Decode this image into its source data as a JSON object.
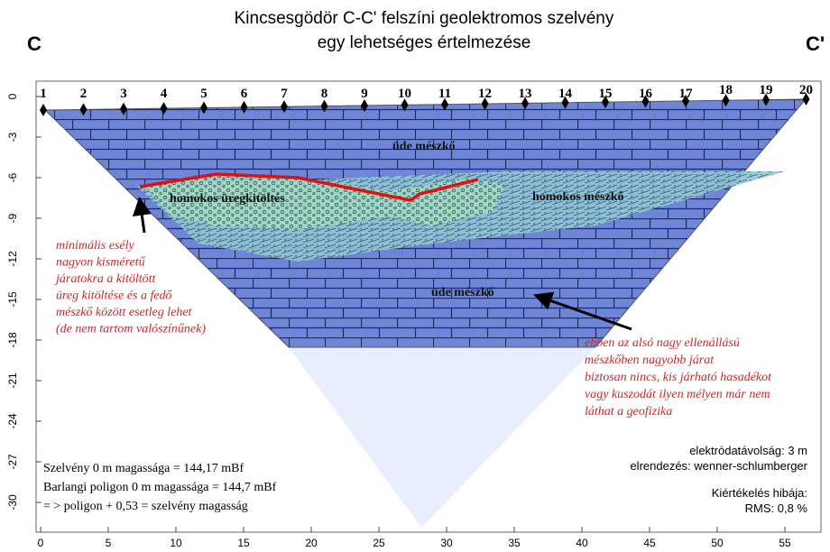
{
  "header": {
    "title_lines": [
      "Kincsesgödör C-C' felszíni geolektromos szelvény",
      "egy lehetséges értelmezése"
    ],
    "left_end": "C",
    "right_end": "C'"
  },
  "electrodes": [
    "1",
    "2",
    "3",
    "4",
    "5",
    "6",
    "7",
    "8",
    "9",
    "10",
    "11",
    "12",
    "13",
    "14",
    "15",
    "16",
    "17",
    "18",
    "19",
    "20"
  ],
  "y_axis_ticks": [
    "0",
    "-3",
    "-6",
    "-9",
    "-12",
    "-15",
    "-18",
    "-21",
    "-24",
    "-27",
    "-30"
  ],
  "x_axis_ticks": [
    "0",
    "5",
    "10",
    "15",
    "20",
    "25",
    "30",
    "35",
    "40",
    "45",
    "50",
    "55"
  ],
  "layers": {
    "upper": "üde mészkő",
    "cavity_fill": "homokos üregkitöltés",
    "sandy": "homokos mészkő",
    "lower": "üde mészkő"
  },
  "notes": {
    "left": [
      "minimális esély",
      "nagyon kisméretű",
      "járatokra a kitöltött",
      "üreg kitöltése és a fedő",
      "mészkő között esetleg lehet",
      "(de nem tartom valószínűnek)"
    ],
    "right": [
      "ebben az alsó nagy ellenállású",
      "mészkőben nagyobb járat",
      "biztosan nincs, kis járható hasadékot",
      "vagy kuszodát ilyen mélyen már nem",
      "láthat a geofizika"
    ]
  },
  "info": {
    "heights": [
      "Szelvény 0 m magassága = 144,17 mBf",
      "Barlangi poligon 0 m magassága = 144,7 mBf",
      "= > poligon + 0,53 = szelvény magasság"
    ],
    "settings": [
      "elektródatávolság: 3 m",
      "elrendezés: wenner-schlumberger"
    ],
    "error": [
      "Kiértékelés hibája:",
      "RMS: 0,8 %"
    ]
  }
}
